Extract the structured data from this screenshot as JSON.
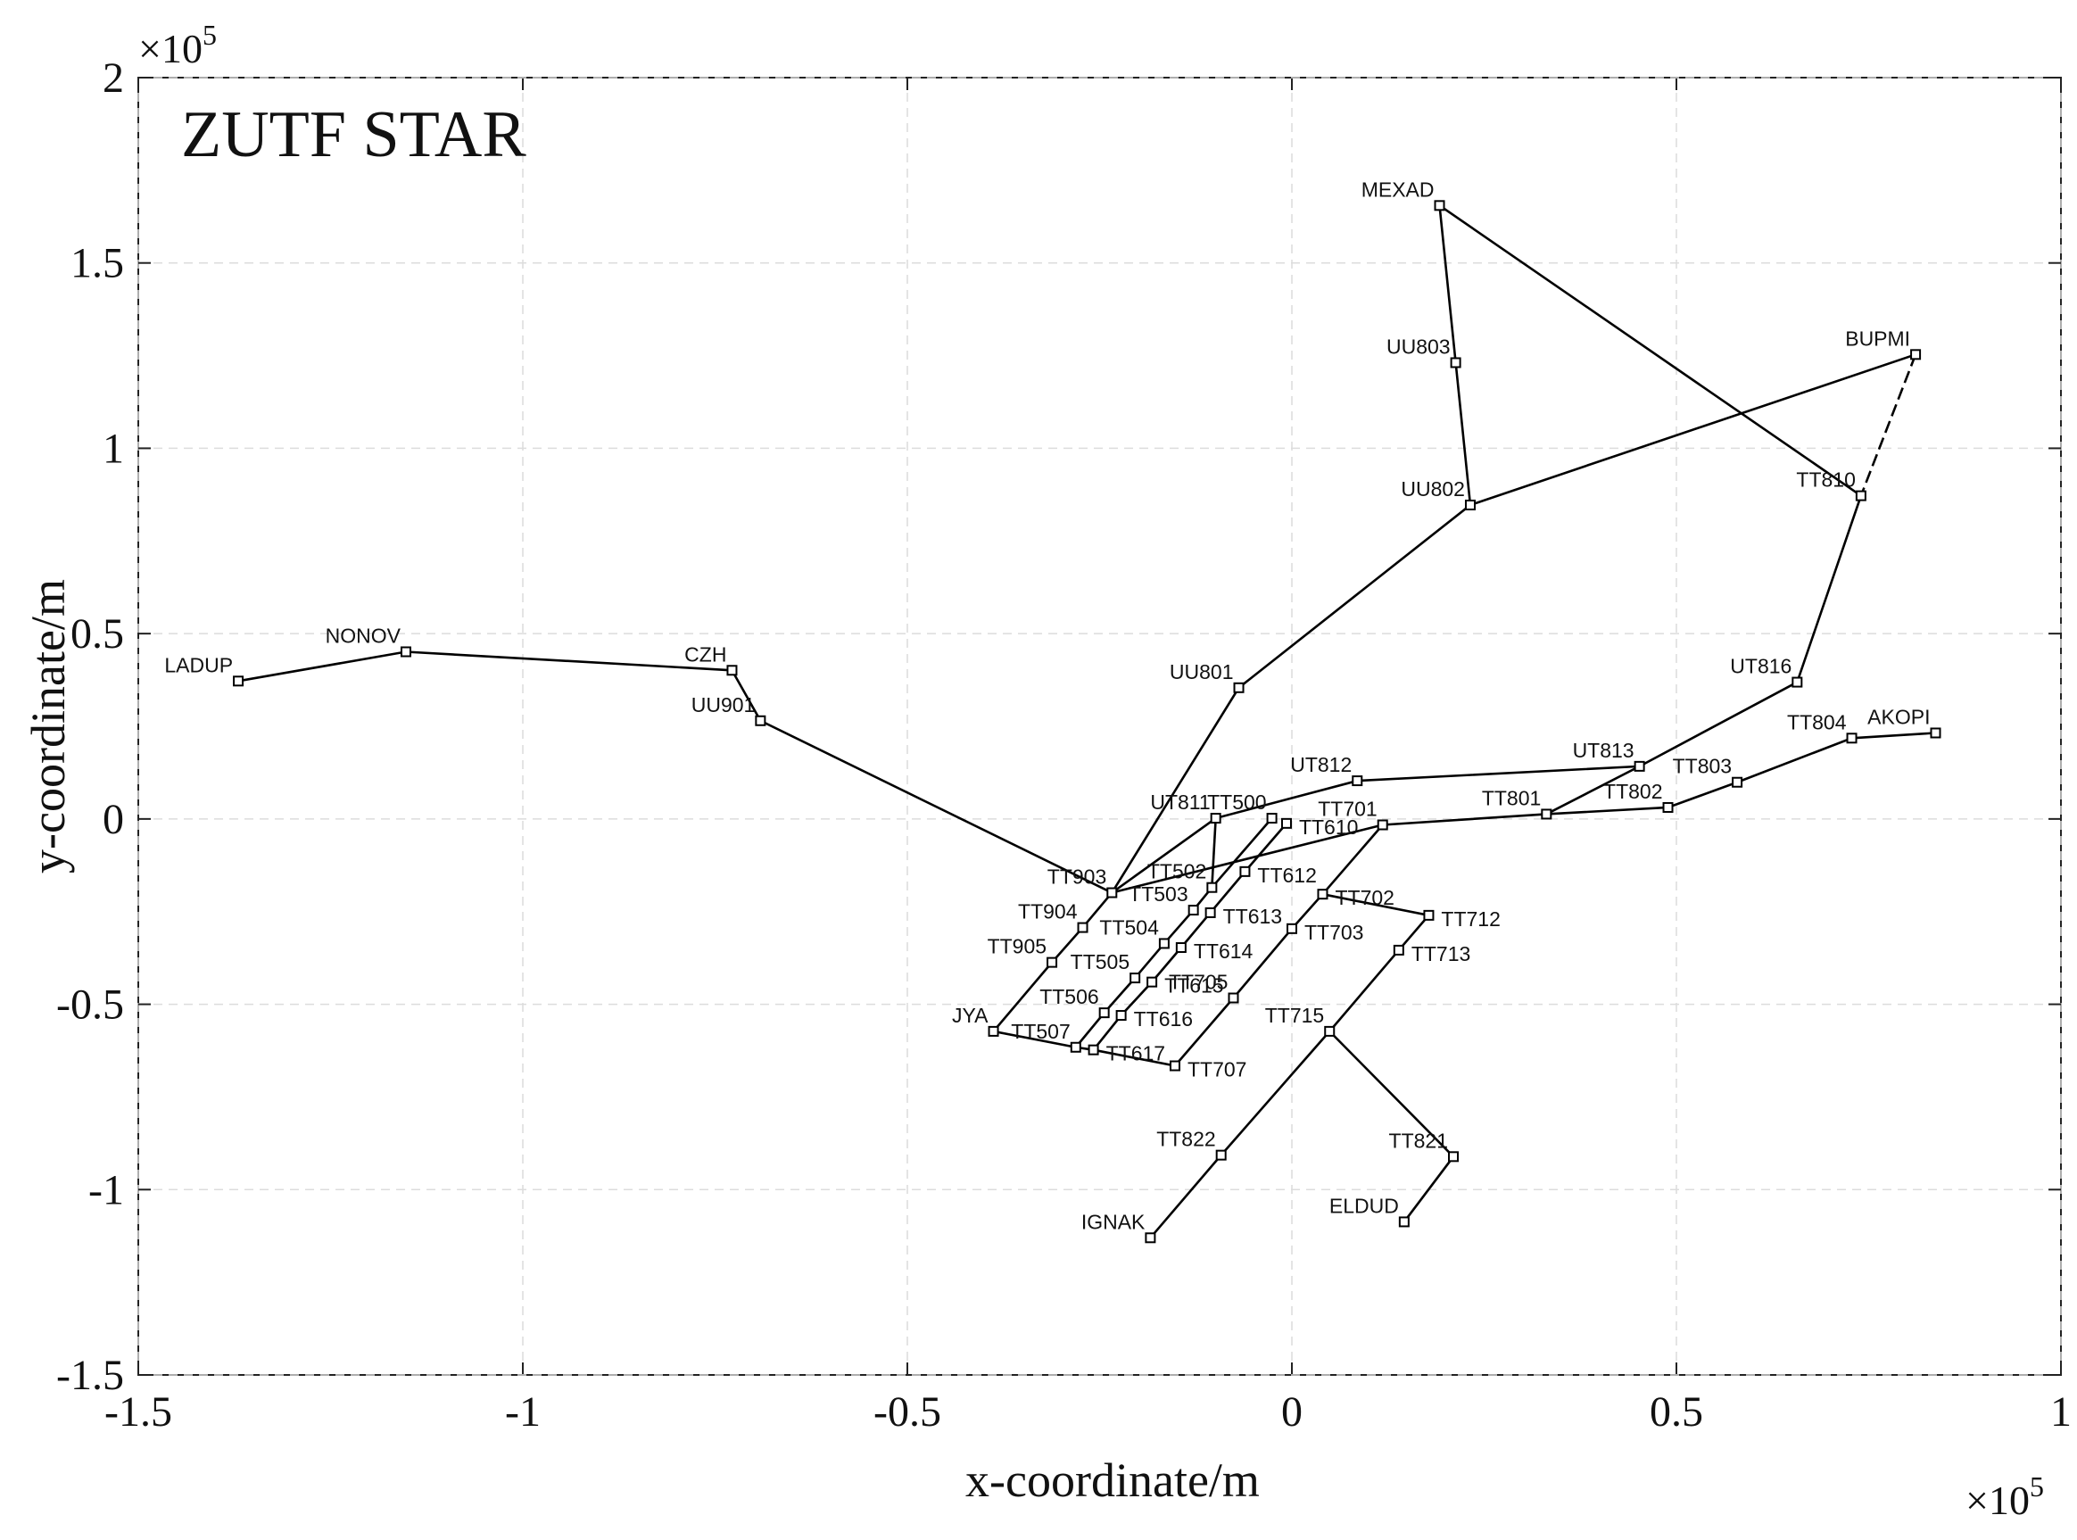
{
  "chart_data": {
    "type": "route-map",
    "title": "ZUTF STAR",
    "xlabel": "x-coordinate/m",
    "ylabel": "y-coordinate/m",
    "x_multiplier": {
      "base": "×10",
      "exponent": "5"
    },
    "y_multiplier": {
      "base": "×10",
      "exponent": "5"
    },
    "xlim": [
      -1.5,
      1
    ],
    "ylim": [
      -1.5,
      2
    ],
    "xticks": [
      -1.5,
      -1,
      -0.5,
      0,
      0.5,
      1
    ],
    "yticks": [
      -1.5,
      -1,
      -0.5,
      0,
      0.5,
      1,
      1.5,
      2
    ],
    "grid": true,
    "color": "#000000",
    "points": [
      {
        "name": "LADUP",
        "x": -1.37,
        "y": 0.372
      },
      {
        "name": "NONOV",
        "x": -1.152,
        "y": 0.451
      },
      {
        "name": "CZH",
        "x": -0.728,
        "y": 0.401
      },
      {
        "name": "UU901",
        "x": -0.691,
        "y": 0.265
      },
      {
        "name": "TT903",
        "x": -0.234,
        "y": -0.199
      },
      {
        "name": "UU801",
        "x": -0.069,
        "y": 0.354
      },
      {
        "name": "UU802",
        "x": 0.232,
        "y": 0.847
      },
      {
        "name": "UU803",
        "x": 0.213,
        "y": 1.231
      },
      {
        "name": "MEXAD",
        "x": 0.192,
        "y": 1.655
      },
      {
        "name": "TT810",
        "x": 0.74,
        "y": 0.872
      },
      {
        "name": "BUPMI",
        "x": 0.811,
        "y": 1.253
      },
      {
        "name": "UT816",
        "x": 0.657,
        "y": 0.369
      },
      {
        "name": "UT813",
        "x": 0.452,
        "y": 0.142
      },
      {
        "name": "TT801",
        "x": 0.331,
        "y": 0.013
      },
      {
        "name": "UT812",
        "x": 0.085,
        "y": 0.103
      },
      {
        "name": "UT811",
        "x": -0.099,
        "y": 0.002
      },
      {
        "name": "TT701",
        "x": 0.118,
        "y": -0.016
      },
      {
        "name": "TT802",
        "x": 0.489,
        "y": 0.031
      },
      {
        "name": "TT803",
        "x": 0.579,
        "y": 0.099
      },
      {
        "name": "TT804",
        "x": 0.728,
        "y": 0.218
      },
      {
        "name": "AKOPI",
        "x": 0.837,
        "y": 0.232
      },
      {
        "name": "TT500",
        "x": -0.026,
        "y": 0.002
      },
      {
        "name": "TT610",
        "x": -0.007,
        "y": -0.012
      },
      {
        "name": "TT502",
        "x": -0.104,
        "y": -0.185
      },
      {
        "name": "TT503",
        "x": -0.128,
        "y": -0.246
      },
      {
        "name": "TT504",
        "x": -0.166,
        "y": -0.336
      },
      {
        "name": "TT505",
        "x": -0.204,
        "y": -0.429
      },
      {
        "name": "TT506",
        "x": -0.244,
        "y": -0.523
      },
      {
        "name": "TT507",
        "x": -0.281,
        "y": -0.616
      },
      {
        "name": "TT612",
        "x": -0.061,
        "y": -0.142
      },
      {
        "name": "TT613",
        "x": -0.106,
        "y": -0.253
      },
      {
        "name": "TT614",
        "x": -0.144,
        "y": -0.347
      },
      {
        "name": "TT615",
        "x": -0.182,
        "y": -0.44
      },
      {
        "name": "TT616",
        "x": -0.222,
        "y": -0.53
      },
      {
        "name": "TT617",
        "x": -0.258,
        "y": -0.623
      },
      {
        "name": "TT702",
        "x": 0.04,
        "y": -0.203
      },
      {
        "name": "TT703",
        "x": 0.0,
        "y": -0.296
      },
      {
        "name": "TT705",
        "x": -0.076,
        "y": -0.483
      },
      {
        "name": "TT707",
        "x": -0.152,
        "y": -0.666
      },
      {
        "name": "TT712",
        "x": 0.178,
        "y": -0.26
      },
      {
        "name": "TT713",
        "x": 0.139,
        "y": -0.354
      },
      {
        "name": "TT715",
        "x": 0.049,
        "y": -0.573
      },
      {
        "name": "TT822",
        "x": -0.092,
        "y": -0.907
      },
      {
        "name": "IGNAK",
        "x": -0.184,
        "y": -1.13
      },
      {
        "name": "TT821",
        "x": 0.21,
        "y": -0.911
      },
      {
        "name": "ELDUD",
        "x": 0.146,
        "y": -1.087
      },
      {
        "name": "JYA",
        "x": -0.388,
        "y": -0.573
      },
      {
        "name": "TT904",
        "x": -0.272,
        "y": -0.293
      },
      {
        "name": "TT905",
        "x": -0.312,
        "y": -0.387
      }
    ],
    "routes": [
      {
        "style": "solid",
        "points": [
          "LADUP",
          "NONOV",
          "CZH",
          "UU901",
          "TT903"
        ]
      },
      {
        "style": "solid",
        "points": [
          "TT903",
          "UU801",
          "UU802",
          "UU803",
          "MEXAD",
          "TT810",
          "UT816",
          "UT813",
          "TT801"
        ]
      },
      {
        "style": "solid",
        "points": [
          "UU802",
          "BUPMI"
        ]
      },
      {
        "style": "dashed",
        "points": [
          "BUPMI",
          "TT810"
        ]
      },
      {
        "style": "solid",
        "points": [
          "TT903",
          "UT811",
          "UT812",
          "UT813"
        ]
      },
      {
        "style": "solid",
        "points": [
          "TT903",
          "TT701",
          "TT801",
          "TT802",
          "TT803",
          "TT804",
          "AKOPI"
        ]
      },
      {
        "style": "solid",
        "points": [
          "TT903",
          "TT904",
          "TT905",
          "JYA",
          "TT507",
          "TT617",
          "TT707"
        ]
      },
      {
        "style": "solid",
        "points": [
          "UT811",
          "TT502"
        ]
      },
      {
        "style": "solid",
        "points": [
          "TT500",
          "TT502",
          "TT503",
          "TT504",
          "TT505",
          "TT506",
          "TT507"
        ]
      },
      {
        "style": "solid",
        "points": [
          "TT610",
          "TT612",
          "TT613",
          "TT614",
          "TT615",
          "TT616",
          "TT617"
        ]
      },
      {
        "style": "solid",
        "points": [
          "TT701",
          "TT702",
          "TT703",
          "TT705",
          "TT707"
        ]
      },
      {
        "style": "solid",
        "points": [
          "TT702",
          "TT712",
          "TT713",
          "TT715",
          "TT822",
          "IGNAK"
        ]
      },
      {
        "style": "solid",
        "points": [
          "TT715",
          "TT821",
          "ELDUD"
        ]
      }
    ]
  }
}
